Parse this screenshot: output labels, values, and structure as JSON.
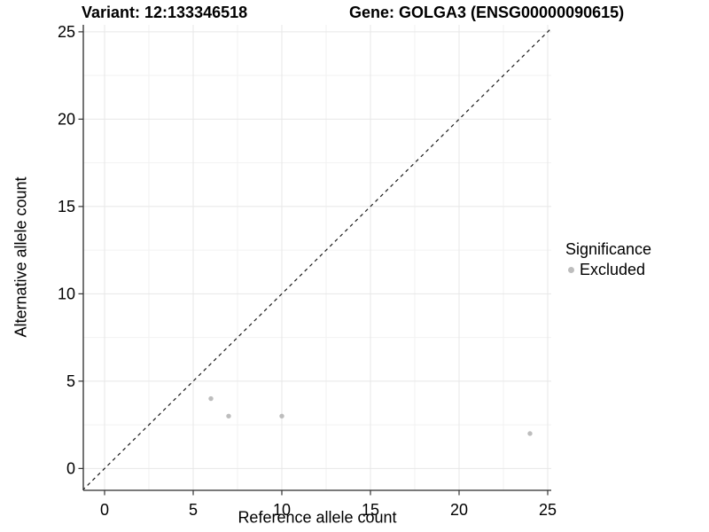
{
  "titles": {
    "variant": "Variant: 12:133346518",
    "gene": "Gene: GOLGA3 (ENSG00000090615)"
  },
  "chart_data": {
    "type": "scatter",
    "title_left": "Variant: 12:133346518",
    "title_right": "Gene: GOLGA3 (ENSG00000090615)",
    "xlabel": "Reference allele count",
    "ylabel": "Alternative allele count",
    "xlim": [
      -1.2,
      25.2
    ],
    "ylim": [
      -1.25,
      25.4
    ],
    "x_ticks": [
      0,
      5,
      10,
      15,
      20,
      25
    ],
    "y_ticks": [
      0,
      5,
      10,
      15,
      20,
      25
    ],
    "x_minor_ticks": [
      2.5,
      7.5,
      12.5,
      17.5,
      22.5
    ],
    "y_minor_ticks": [
      2.5,
      7.5,
      12.5,
      17.5,
      22.5
    ],
    "grid": "major+minor",
    "identity_line": {
      "style": "dashed",
      "from": [
        -1.25,
        -1.25
      ],
      "to": [
        25.4,
        25.4
      ]
    },
    "series": [
      {
        "name": "Excluded",
        "points": [
          [
            6,
            4
          ],
          [
            7,
            3
          ],
          [
            10,
            3
          ],
          [
            24,
            2
          ]
        ]
      }
    ],
    "legend": {
      "title": "Significance",
      "position": "right",
      "items": [
        {
          "label": "Excluded"
        }
      ]
    }
  },
  "colors": {
    "point": "#bdbdbd",
    "identity_line": "#1a1a1a",
    "axis_line": "#2a2a2a",
    "tick_mark": "#333333",
    "grid_major": "#e7e7e7",
    "grid_minor": "#f2f2f2",
    "text": "#000000",
    "background": "#ffffff"
  }
}
